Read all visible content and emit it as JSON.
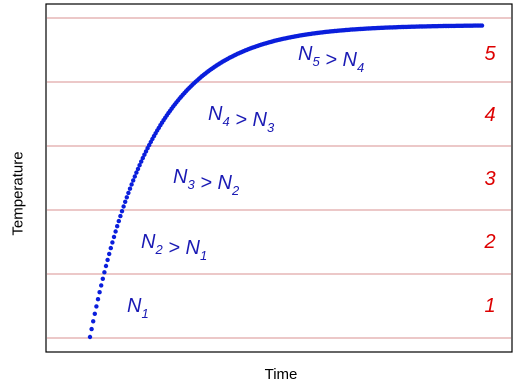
{
  "figure": {
    "xlabel": "Time",
    "ylabel": "Temperature",
    "boundary_color": "#e0a8a8",
    "curve_color": "#0a1edc",
    "zone_number_color": "#dd0000",
    "label_color": "#1a1ab4",
    "zones": [
      {
        "number": "1",
        "label": [
          {
            "t": "N",
            "s": "1"
          }
        ]
      },
      {
        "number": "2",
        "label": [
          {
            "t": "N",
            "s": "2"
          },
          {
            "t": " > "
          },
          {
            "t": "N",
            "s": "1"
          }
        ]
      },
      {
        "number": "3",
        "label": [
          {
            "t": "N",
            "s": "3"
          },
          {
            "t": " > "
          },
          {
            "t": "N",
            "s": "2"
          }
        ]
      },
      {
        "number": "4",
        "label": [
          {
            "t": "N",
            "s": "4"
          },
          {
            "t": " > "
          },
          {
            "t": "N",
            "s": "3"
          }
        ]
      },
      {
        "number": "5",
        "label": [
          {
            "t": "N",
            "s": "5"
          },
          {
            "t": " > "
          },
          {
            "t": "N",
            "s": "4"
          }
        ]
      }
    ]
  }
}
